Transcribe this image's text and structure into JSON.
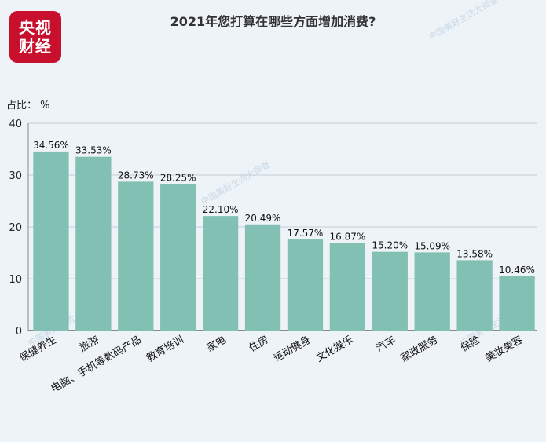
{
  "logo": {
    "line1": "央视",
    "line2": "财经"
  },
  "watermark": "中国美好生活大调查",
  "chart_data": {
    "type": "bar",
    "title": "2021年您打算在哪些方面增加消费?",
    "ylabel": "占比： %",
    "xlabel": "",
    "ylim": [
      0,
      40
    ],
    "yticks": [
      0,
      10,
      20,
      30,
      40
    ],
    "grid": true,
    "bar_color": "#82c0b4",
    "categories": [
      "保健养生",
      "旅游",
      "电脑、手机等数码产品",
      "教育培训",
      "家电",
      "住房",
      "运动健身",
      "文化娱乐",
      "汽车",
      "家政服务",
      "保险",
      "美妆美容"
    ],
    "values": [
      34.56,
      33.53,
      28.73,
      28.25,
      22.1,
      20.49,
      17.57,
      16.87,
      15.2,
      15.09,
      13.58,
      10.46
    ],
    "value_labels": [
      "34.56%",
      "33.53%",
      "28.73%",
      "28.25%",
      "22.10%",
      "20.49%",
      "17.57%",
      "16.87%",
      "15.20%",
      "15.09%",
      "13.58%",
      "10.46%"
    ]
  }
}
